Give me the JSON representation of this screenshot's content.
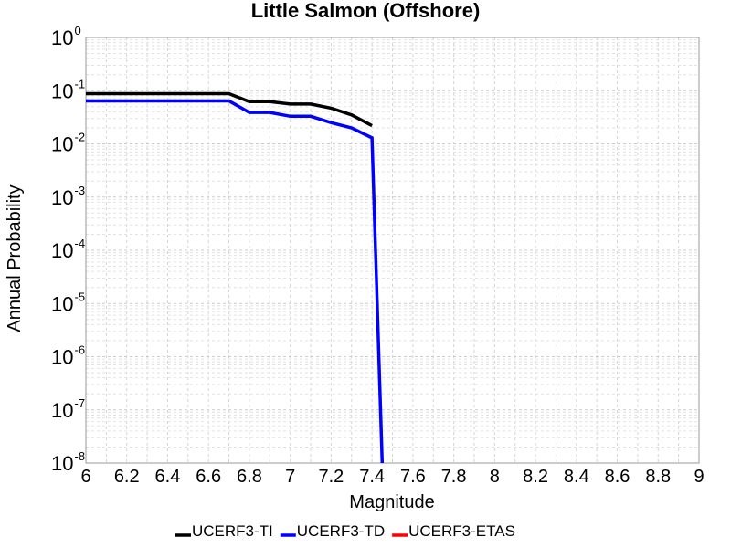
{
  "chart_data": {
    "type": "line",
    "title": "Little Salmon (Offshore)",
    "xlabel": "Magnitude",
    "ylabel": "Annual Probability",
    "xlim": [
      6,
      9
    ],
    "ylim": [
      1e-08,
      1
    ],
    "yscale": "log",
    "grid": true,
    "legend_position": "bottom",
    "x_ticks": [
      "6",
      "6.2",
      "6.4",
      "6.6",
      "6.8",
      "7",
      "7.2",
      "7.4",
      "7.6",
      "7.8",
      "8",
      "8.2",
      "8.4",
      "8.6",
      "8.8",
      "9"
    ],
    "y_ticks": [
      {
        "base": "10",
        "exp": "-8"
      },
      {
        "base": "10",
        "exp": "-7"
      },
      {
        "base": "10",
        "exp": "-6"
      },
      {
        "base": "10",
        "exp": "-5"
      },
      {
        "base": "10",
        "exp": "-4"
      },
      {
        "base": "10",
        "exp": "-3"
      },
      {
        "base": "10",
        "exp": "-2"
      },
      {
        "base": "10",
        "exp": "-1"
      },
      {
        "base": "10",
        "exp": "0"
      }
    ],
    "series": [
      {
        "name": "UCERF3-TI",
        "color": "#000000",
        "x": [
          6.0,
          6.1,
          6.2,
          6.3,
          6.4,
          6.5,
          6.6,
          6.7,
          6.8,
          6.9,
          7.0,
          7.1,
          7.2,
          7.3,
          7.4
        ],
        "y": [
          0.088,
          0.088,
          0.088,
          0.088,
          0.088,
          0.088,
          0.088,
          0.088,
          0.062,
          0.062,
          0.056,
          0.056,
          0.047,
          0.035,
          0.022
        ]
      },
      {
        "name": "UCERF3-TD",
        "color": "#0000ff",
        "x": [
          6.0,
          6.1,
          6.2,
          6.3,
          6.4,
          6.5,
          6.6,
          6.7,
          6.8,
          6.9,
          7.0,
          7.1,
          7.2,
          7.3,
          7.4,
          7.45
        ],
        "y": [
          0.064,
          0.064,
          0.064,
          0.064,
          0.064,
          0.064,
          0.064,
          0.064,
          0.039,
          0.039,
          0.033,
          0.033,
          0.025,
          0.02,
          0.013,
          1e-08
        ]
      },
      {
        "name": "UCERF3-ETAS",
        "color": "#ff0000",
        "x": [],
        "y": []
      }
    ]
  }
}
